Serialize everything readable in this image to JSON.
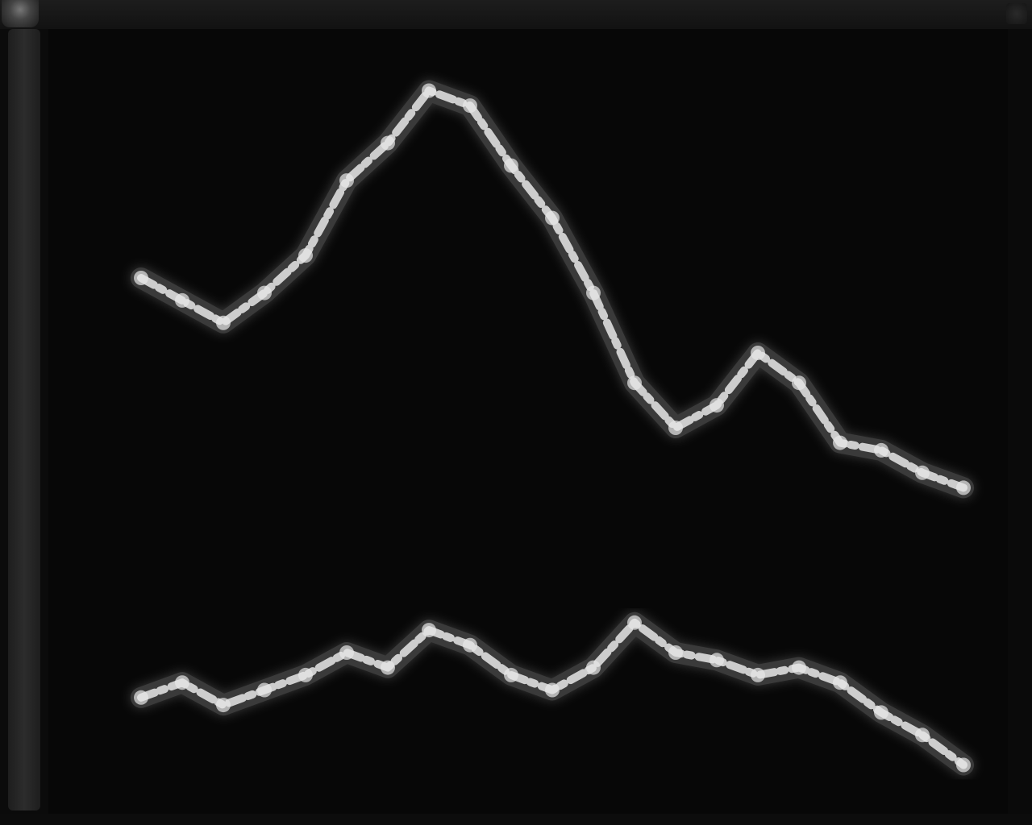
{
  "window": {
    "title": ""
  },
  "colors": {
    "background": "#080808",
    "trace": "#e8e8e8",
    "trace_glow": "#9a9a9a"
  },
  "icons": {
    "window_control": "window-control-icon",
    "menu": "menu-icon"
  },
  "chart_data": {
    "type": "line",
    "title": "",
    "xlabel": "",
    "ylabel": "",
    "grid": false,
    "legend": "none",
    "x": [
      0,
      1,
      2,
      3,
      4,
      5,
      6,
      7,
      8,
      9,
      10,
      11,
      12,
      13,
      14,
      15,
      16,
      17,
      18,
      19,
      20
    ],
    "xlim": [
      0,
      20
    ],
    "ylim": [
      0,
      100
    ],
    "series": [
      {
        "name": "",
        "values": [
          70,
          67,
          64,
          68,
          73,
          83,
          88,
          95,
          93,
          85,
          78,
          68,
          56,
          50,
          53,
          60,
          56,
          48,
          47,
          44,
          42
        ]
      },
      {
        "name": "",
        "values": [
          14,
          16,
          13,
          15,
          17,
          20,
          18,
          23,
          21,
          17,
          15,
          18,
          24,
          20,
          19,
          17,
          18,
          16,
          12,
          9,
          5
        ]
      }
    ]
  }
}
